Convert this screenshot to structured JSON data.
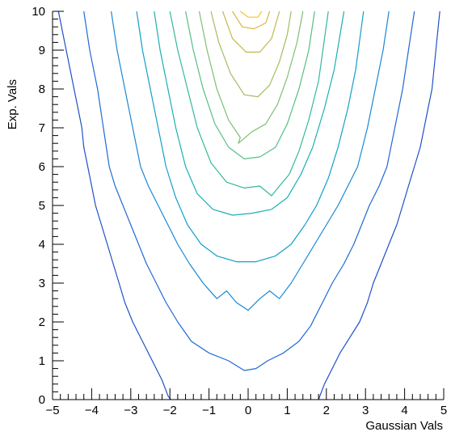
{
  "chart_data": {
    "type": "contour",
    "xlabel": "Gaussian Vals",
    "ylabel": "Exp. Vals",
    "xlim": [
      -5,
      5
    ],
    "ylim": [
      0,
      10
    ],
    "x_ticks": [
      -5,
      -4,
      -3,
      -2,
      -1,
      0,
      1,
      2,
      3,
      4,
      5
    ],
    "y_ticks": [
      0,
      1,
      2,
      3,
      4,
      5,
      6,
      7,
      8,
      9,
      10
    ],
    "x_tick_labels": [
      "−5",
      "−4",
      "−3",
      "−2",
      "−1",
      "0",
      "1",
      "2",
      "3",
      "4",
      "5"
    ],
    "y_tick_labels": [
      "0",
      "1",
      "2",
      "3",
      "4",
      "5",
      "6",
      "7",
      "8",
      "9",
      "10"
    ],
    "colormap": "kBird",
    "colors": {
      "axis": "#000000",
      "palette": [
        "#1f50c8",
        "#1f69d6",
        "#1a88d6",
        "#139fc9",
        "#1aafb4",
        "#32b99b",
        "#58be85",
        "#7ebf72",
        "#a2bd5e",
        "#c1b94c",
        "#dcb83b",
        "#f3c52a",
        "#fbdb1c"
      ]
    },
    "series": [
      {
        "points": [
          [
            -4.85,
            10
          ],
          [
            -4.75,
            9.5
          ],
          [
            -4.65,
            9.0
          ],
          [
            -4.55,
            8.5
          ],
          [
            -4.45,
            8.0
          ],
          [
            -4.35,
            7.5
          ],
          [
            -4.25,
            7.0
          ],
          [
            -4.2,
            6.5
          ],
          [
            -4.1,
            6.0
          ],
          [
            -4.0,
            5.5
          ],
          [
            -3.9,
            5.0
          ],
          [
            -3.75,
            4.5
          ],
          [
            -3.6,
            4.0
          ],
          [
            -3.45,
            3.5
          ],
          [
            -3.3,
            3.0
          ],
          [
            -3.15,
            2.5
          ],
          [
            -2.95,
            2.0
          ],
          [
            -2.7,
            1.5
          ],
          [
            -2.45,
            1.0
          ],
          [
            -2.2,
            0.5
          ],
          [
            -2.05,
            0.1
          ],
          [
            -1.98,
            0
          ]
        ]
      },
      {
        "points": [
          [
            1.8,
            0
          ],
          [
            1.95,
            0.4
          ],
          [
            2.15,
            0.8
          ],
          [
            2.35,
            1.2
          ],
          [
            2.6,
            1.6
          ],
          [
            2.85,
            2.0
          ],
          [
            3.05,
            2.5
          ],
          [
            3.2,
            3.0
          ],
          [
            3.4,
            3.5
          ],
          [
            3.6,
            4.0
          ],
          [
            3.8,
            4.5
          ],
          [
            3.95,
            5.0
          ],
          [
            4.1,
            5.5
          ],
          [
            4.25,
            6.0
          ],
          [
            4.4,
            6.5
          ],
          [
            4.5,
            7.0
          ],
          [
            4.6,
            7.5
          ],
          [
            4.7,
            8.0
          ],
          [
            4.75,
            8.5
          ],
          [
            4.8,
            9.0
          ],
          [
            4.85,
            9.5
          ],
          [
            4.9,
            10
          ]
        ]
      },
      {
        "points": [
          [
            -4.2,
            10
          ],
          [
            -4.05,
            9.0
          ],
          [
            -3.85,
            8.0
          ],
          [
            -3.7,
            7.0
          ],
          [
            -3.55,
            6.0
          ],
          [
            -3.4,
            5.5
          ],
          [
            -3.2,
            5.0
          ],
          [
            -3.0,
            4.5
          ],
          [
            -2.8,
            4.0
          ],
          [
            -2.6,
            3.5
          ],
          [
            -2.35,
            3.0
          ],
          [
            -2.1,
            2.5
          ],
          [
            -1.8,
            2.0
          ],
          [
            -1.45,
            1.5
          ],
          [
            -1.0,
            1.2
          ],
          [
            -0.5,
            1.0
          ],
          [
            -0.1,
            0.75
          ],
          [
            0.2,
            0.8
          ],
          [
            0.5,
            1.0
          ],
          [
            0.9,
            1.2
          ],
          [
            1.3,
            1.5
          ],
          [
            1.6,
            1.9
          ],
          [
            1.9,
            2.5
          ],
          [
            2.15,
            3.0
          ],
          [
            2.45,
            3.5
          ],
          [
            2.7,
            4.0
          ],
          [
            2.9,
            4.5
          ],
          [
            3.1,
            5.0
          ],
          [
            3.35,
            5.5
          ],
          [
            3.55,
            6.0
          ],
          [
            3.75,
            7.0
          ],
          [
            3.95,
            8.0
          ],
          [
            4.1,
            9.0
          ],
          [
            4.25,
            10
          ]
        ]
      },
      {
        "points": [
          [
            -3.5,
            10
          ],
          [
            -3.35,
            9.0
          ],
          [
            -3.15,
            8.0
          ],
          [
            -2.95,
            7.0
          ],
          [
            -2.75,
            6.0
          ],
          [
            -2.55,
            5.5
          ],
          [
            -2.3,
            5.0
          ],
          [
            -2.05,
            4.5
          ],
          [
            -1.8,
            4.0
          ],
          [
            -1.5,
            3.5
          ],
          [
            -1.15,
            3.0
          ],
          [
            -0.8,
            2.6
          ],
          [
            -0.55,
            2.8
          ],
          [
            -0.3,
            2.5
          ],
          [
            0.0,
            2.3
          ],
          [
            0.3,
            2.6
          ],
          [
            0.55,
            2.8
          ],
          [
            0.8,
            2.6
          ],
          [
            1.1,
            3.0
          ],
          [
            1.4,
            3.5
          ],
          [
            1.7,
            4.0
          ],
          [
            2.0,
            4.5
          ],
          [
            2.3,
            5.0
          ],
          [
            2.55,
            5.5
          ],
          [
            2.8,
            6.0
          ],
          [
            3.05,
            7.0
          ],
          [
            3.25,
            8.0
          ],
          [
            3.45,
            9.0
          ],
          [
            3.6,
            10
          ]
        ]
      },
      {
        "points": [
          [
            -2.85,
            10
          ],
          [
            -2.7,
            9.0
          ],
          [
            -2.5,
            8.0
          ],
          [
            -2.3,
            7.0
          ],
          [
            -2.1,
            6.0
          ],
          [
            -1.85,
            5.2
          ],
          [
            -1.55,
            4.5
          ],
          [
            -1.2,
            4.0
          ],
          [
            -0.8,
            3.7
          ],
          [
            -0.3,
            3.55
          ],
          [
            0.2,
            3.55
          ],
          [
            0.7,
            3.7
          ],
          [
            1.1,
            4.0
          ],
          [
            1.45,
            4.5
          ],
          [
            1.75,
            5.0
          ],
          [
            2.05,
            5.7
          ],
          [
            2.3,
            6.5
          ],
          [
            2.55,
            7.5
          ],
          [
            2.75,
            8.5
          ],
          [
            2.95,
            10
          ]
        ]
      },
      {
        "points": [
          [
            -2.4,
            10
          ],
          [
            -2.25,
            9.0
          ],
          [
            -2.05,
            8.0
          ],
          [
            -1.85,
            7.0
          ],
          [
            -1.6,
            6.0
          ],
          [
            -1.3,
            5.3
          ],
          [
            -0.9,
            4.9
          ],
          [
            -0.4,
            4.75
          ],
          [
            0.1,
            4.8
          ],
          [
            0.6,
            4.9
          ],
          [
            1.0,
            5.2
          ],
          [
            1.35,
            5.8
          ],
          [
            1.65,
            6.5
          ],
          [
            1.95,
            7.5
          ],
          [
            2.2,
            8.5
          ],
          [
            2.45,
            10
          ]
        ]
      },
      {
        "points": [
          [
            -2.0,
            10
          ],
          [
            -1.8,
            9.0
          ],
          [
            -1.55,
            8.0
          ],
          [
            -1.3,
            7.0
          ],
          [
            -0.95,
            6.1
          ],
          [
            -0.55,
            5.6
          ],
          [
            -0.1,
            5.45
          ],
          [
            0.3,
            5.5
          ],
          [
            0.6,
            5.25
          ],
          [
            0.8,
            5.5
          ],
          [
            1.05,
            5.8
          ],
          [
            1.3,
            6.4
          ],
          [
            1.55,
            7.2
          ],
          [
            1.8,
            8.2
          ],
          [
            2.05,
            10
          ]
        ]
      },
      {
        "points": [
          [
            -1.6,
            10
          ],
          [
            -1.4,
            9.0
          ],
          [
            -1.15,
            8.0
          ],
          [
            -0.85,
            7.1
          ],
          [
            -0.5,
            6.5
          ],
          [
            -0.1,
            6.2
          ],
          [
            0.3,
            6.25
          ],
          [
            0.7,
            6.5
          ],
          [
            1.0,
            7.1
          ],
          [
            1.3,
            8.0
          ],
          [
            1.55,
            9.0
          ],
          [
            1.7,
            10
          ]
        ]
      },
      {
        "points": [
          [
            -1.25,
            10
          ],
          [
            -1.05,
            9.0
          ],
          [
            -0.8,
            8.0
          ],
          [
            -0.5,
            7.2
          ],
          [
            -0.2,
            6.75
          ],
          [
            -0.25,
            6.6
          ],
          [
            0.1,
            6.9
          ],
          [
            0.45,
            7.1
          ],
          [
            0.75,
            7.6
          ],
          [
            1.0,
            8.3
          ],
          [
            1.25,
            9.2
          ],
          [
            1.4,
            10
          ]
        ]
      },
      {
        "points": [
          [
            -0.95,
            10
          ],
          [
            -0.75,
            9.2
          ],
          [
            -0.45,
            8.4
          ],
          [
            -0.1,
            7.85
          ],
          [
            0.25,
            7.8
          ],
          [
            0.55,
            8.1
          ],
          [
            0.8,
            8.7
          ],
          [
            1.0,
            9.4
          ],
          [
            1.1,
            10
          ]
        ]
      },
      {
        "points": [
          [
            -0.65,
            10
          ],
          [
            -0.4,
            9.3
          ],
          [
            -0.05,
            8.95
          ],
          [
            0.3,
            8.95
          ],
          [
            0.6,
            9.3
          ],
          [
            0.8,
            10
          ]
        ]
      },
      {
        "points": [
          [
            -0.4,
            10
          ],
          [
            -0.15,
            9.6
          ],
          [
            0.15,
            9.55
          ],
          [
            0.45,
            9.7
          ],
          [
            0.55,
            10
          ]
        ]
      },
      {
        "points": [
          [
            -0.2,
            10
          ],
          [
            0.0,
            9.85
          ],
          [
            0.25,
            9.85
          ],
          [
            0.35,
            10
          ]
        ]
      }
    ]
  }
}
